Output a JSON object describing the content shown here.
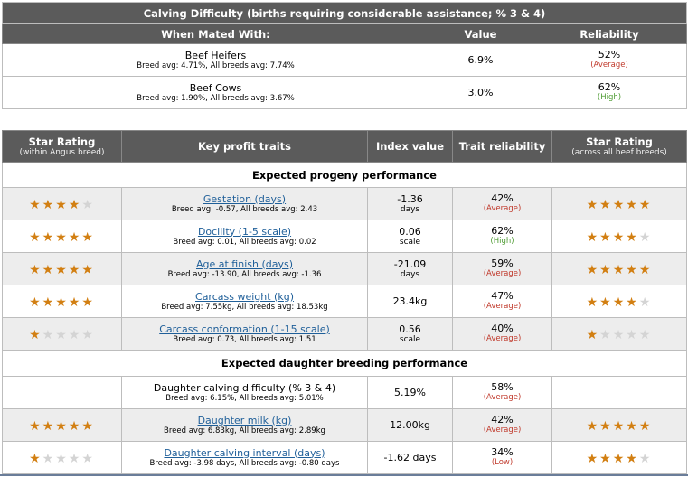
{
  "calving": {
    "title": "Calving Difficulty (births requiring considerable assistance; % 3 & 4)",
    "headers": {
      "mated": "When Mated With:",
      "value": "Value",
      "reliability": "Reliability"
    },
    "rows": [
      {
        "name": "Beef Heifers",
        "avg": "Breed avg: 4.71%, All breeds avg: 7.74%",
        "value": "6.9%",
        "reliability": "52%",
        "level": "(Average)"
      },
      {
        "name": "Beef Cows",
        "avg": "Breed avg: 1.90%, All breeds avg: 3.67%",
        "value": "3.0%",
        "reliability": "62%",
        "level": "(High)"
      }
    ]
  },
  "traits": {
    "headers": {
      "star_within": "Star Rating",
      "star_within_sub": "(within Angus breed)",
      "key": "Key profit traits",
      "index": "Index value",
      "trait_rel": "Trait reliability",
      "star_across": "Star Rating",
      "star_across_sub": "(across all beef breeds)"
    },
    "section_progeny": "Expected progeny performance",
    "section_daughter": "Expected daughter breeding performance",
    "progeny": [
      {
        "name": "Gestation (days)",
        "avg": "Breed avg: -0.57, All breeds avg: 2.43",
        "value": "-1.36",
        "unit": "days",
        "reliability": "42%",
        "level": "(Average)",
        "stars_within": 4,
        "stars_across": 5
      },
      {
        "name": "Docility (1-5 scale)",
        "avg": "Breed avg: 0.01, All breeds avg: 0.02",
        "value": "0.06",
        "unit": "scale",
        "reliability": "62%",
        "level": "(High)",
        "stars_within": 5,
        "stars_across": 4
      },
      {
        "name": "Age at finish (days)",
        "avg": "Breed avg: -13.90, All breeds avg: -1.36",
        "value": "-21.09",
        "unit": "days",
        "reliability": "59%",
        "level": "(Average)",
        "stars_within": 5,
        "stars_across": 5
      },
      {
        "name": "Carcass weight (kg)",
        "avg": "Breed avg: 7.55kg, All breeds avg: 18.53kg",
        "value": "23.4kg",
        "unit": "",
        "reliability": "47%",
        "level": "(Average)",
        "stars_within": 5,
        "stars_across": 4
      },
      {
        "name": "Carcass conformation (1-15 scale)",
        "avg": "Breed avg: 0.73, All breeds avg: 1.51",
        "value": "0.56",
        "unit": "scale",
        "reliability": "40%",
        "level": "(Average)",
        "stars_within": 1,
        "stars_across": 1
      }
    ],
    "daughter": [
      {
        "name": "Daughter calving difficulty (% 3 & 4)",
        "avg": "Breed avg: 6.15%, All breeds avg: 5.01%",
        "value": "5.19%",
        "unit": "",
        "reliability": "58%",
        "level": "(Average)",
        "stars_within": 0,
        "stars_across": 0,
        "link": false
      },
      {
        "name": "Daughter milk (kg)",
        "avg": "Breed avg: 6.83kg, All breeds avg: 2.89kg",
        "value": "12.00kg",
        "unit": "",
        "reliability": "42%",
        "level": "(Average)",
        "stars_within": 5,
        "stars_across": 5,
        "link": true
      },
      {
        "name": "Daughter calving interval (days)",
        "avg": "Breed avg: -3.98 days, All breeds avg: -0.80 days",
        "value": "-1.62 days",
        "unit": "",
        "reliability": "34%",
        "level": "(Low)",
        "stars_within": 1,
        "stars_across": 4,
        "link": true
      }
    ]
  },
  "icons": {
    "star": "star-icon"
  },
  "colors": {
    "header_bg": "#5b5b5b",
    "star_on": "#d27f12",
    "star_off": "#d4d4d4",
    "link": "#1f5f99",
    "high": "#4f9c34",
    "average": "#c0392b"
  }
}
